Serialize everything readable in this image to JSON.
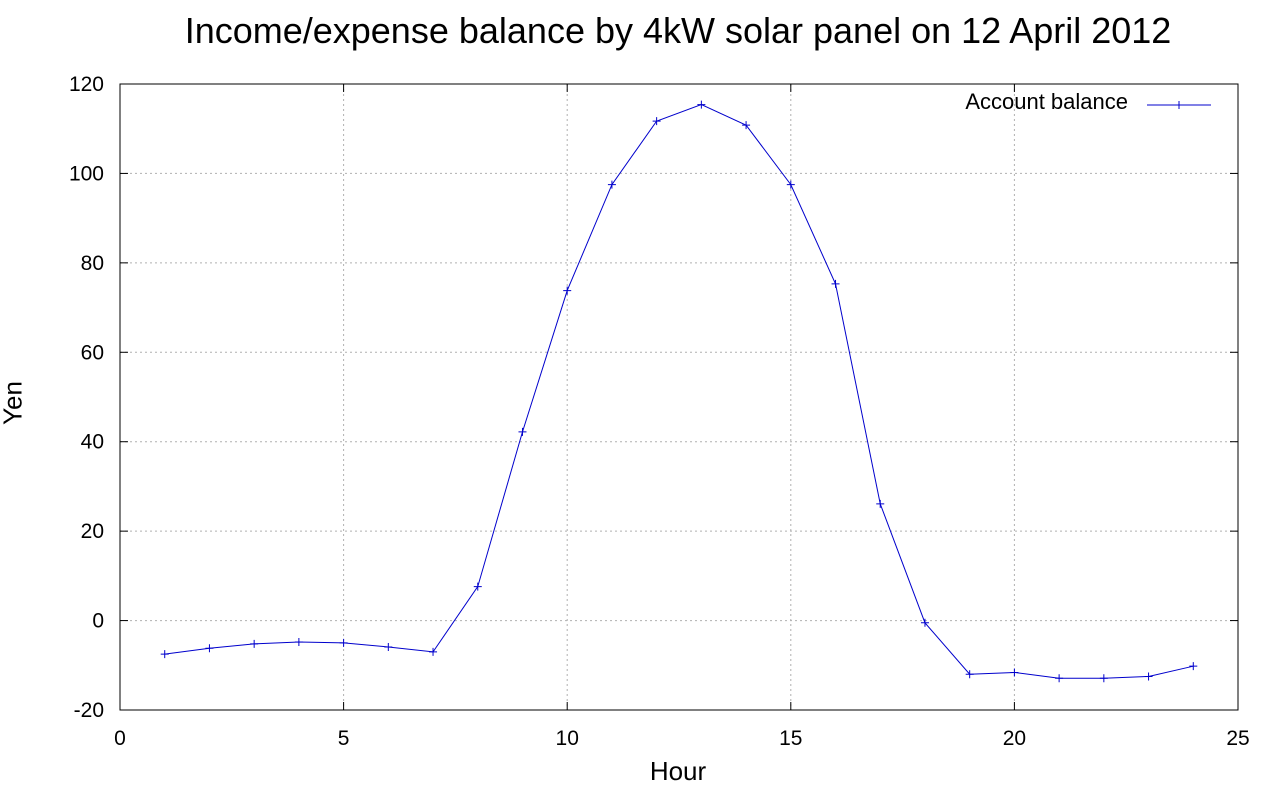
{
  "chart_data": {
    "type": "line",
    "title": "Income/expense balance by 4kW solar panel on 12 April 2012",
    "xlabel": "Hour",
    "ylabel": "Yen",
    "xlim": [
      0,
      25
    ],
    "ylim": [
      -20,
      120
    ],
    "x_ticks": [
      0,
      5,
      10,
      15,
      20,
      25
    ],
    "y_ticks": [
      -20,
      0,
      20,
      40,
      60,
      80,
      100,
      120
    ],
    "x_tick_labels": [
      "0",
      "5",
      "10",
      "15",
      "20",
      "25"
    ],
    "y_tick_labels": [
      "-20",
      "0",
      "20",
      "40",
      "60",
      "80",
      "100",
      "120"
    ],
    "grid": true,
    "legend_position": "top-right",
    "series": [
      {
        "name": "Account balance",
        "color": "#0000cc",
        "marker": "plus",
        "x": [
          1,
          2,
          3,
          4,
          5,
          6,
          7,
          8,
          9,
          10,
          11,
          12,
          13,
          14,
          15,
          16,
          17,
          18,
          19,
          20,
          21,
          22,
          23,
          24
        ],
        "y": [
          -7.5,
          -6.2,
          -5.2,
          -4.8,
          -5.0,
          -5.9,
          -7.0,
          7.6,
          42.2,
          73.8,
          97.5,
          111.7,
          115.4,
          110.8,
          97.5,
          75.3,
          26.1,
          -0.5,
          -12.0,
          -11.6,
          -12.9,
          -12.9,
          -12.5,
          -10.2
        ]
      }
    ]
  }
}
